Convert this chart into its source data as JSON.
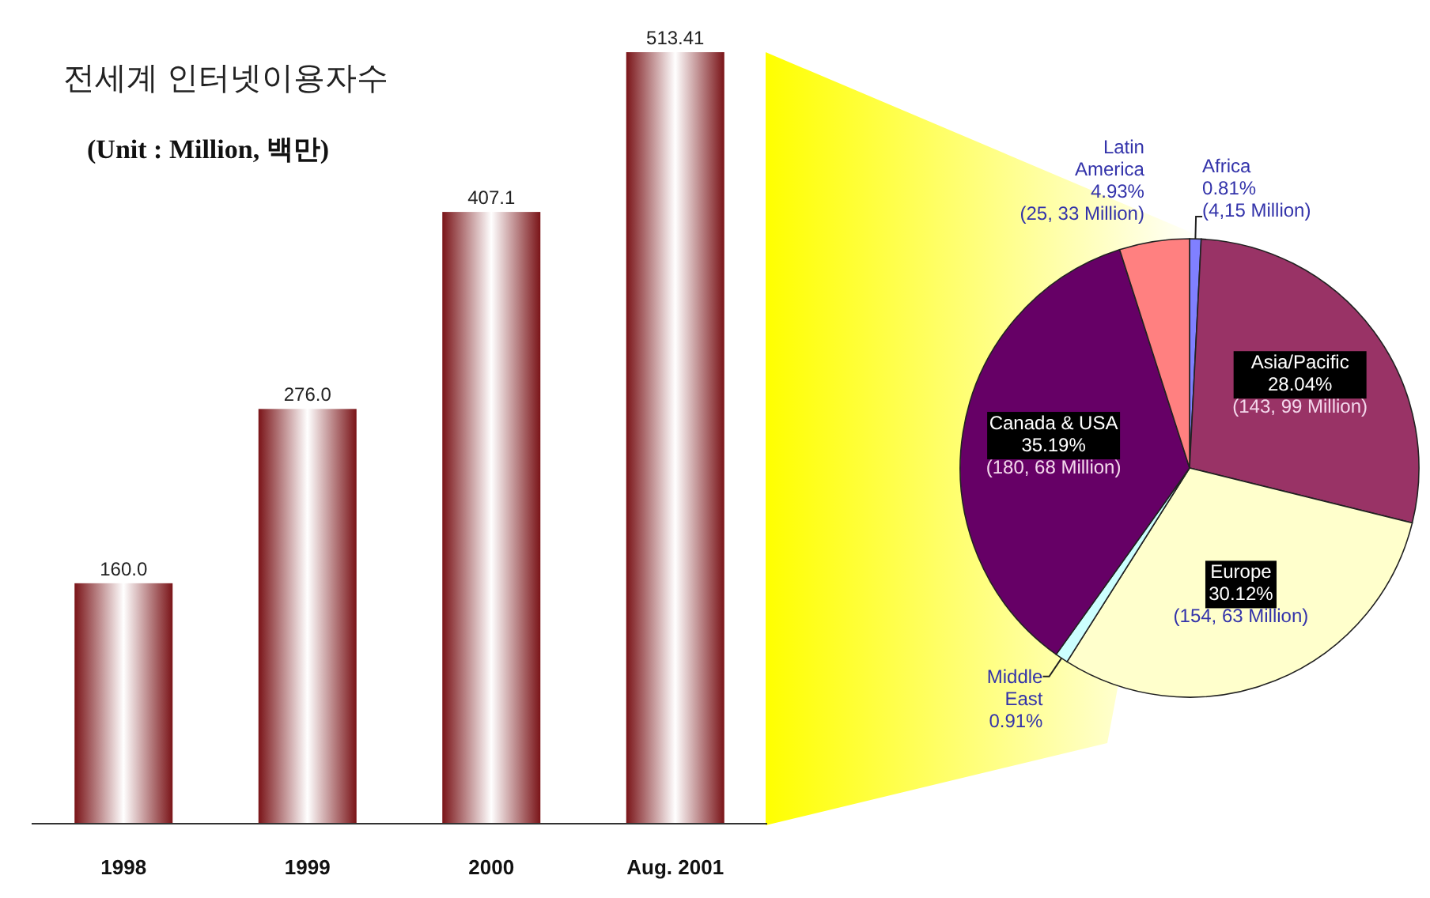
{
  "chart_data": [
    {
      "type": "bar",
      "title": "전세계 인터넷이용자수",
      "subtitle": "(Unit : Million, 백만)",
      "categories": [
        "1998",
        "1999",
        "2000",
        "Aug. 2001"
      ],
      "values": [
        160.0,
        276.0,
        407.1,
        513.41
      ],
      "value_labels": [
        "160.0",
        "276.0",
        "407.1",
        "513.41"
      ],
      "color": "#7a1418"
    },
    {
      "type": "pie",
      "categories": [
        "Africa",
        "Asia/Pacific",
        "Europe",
        "Middle East",
        "Canada & USA",
        "Latin America"
      ],
      "values": [
        0.81,
        28.04,
        30.12,
        0.91,
        35.19,
        4.93
      ],
      "value_labels": [
        "0.81%\n(4,15 Million)",
        "28.04%\n(143, 99 Million)",
        "30.12%\n(154, 63 Million)",
        "0.91%",
        "35.19%\n(180, 68 Million)",
        "4.93%\n(25, 33 Million)"
      ],
      "colors": [
        "#8080ff",
        "#993366",
        "#ffffcc",
        "#ccffff",
        "#660066",
        "#ff8080"
      ]
    }
  ]
}
